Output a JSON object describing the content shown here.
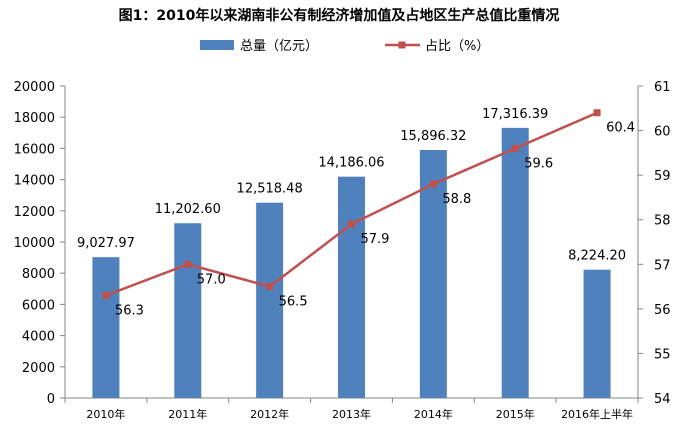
{
  "chart_data": {
    "type": "bar",
    "title": "图1：2010年以来湖南非公有制经济增加值及占地区生产总值比重情况",
    "categories": [
      "2010年",
      "2011年",
      "2012年",
      "2013年",
      "2014年",
      "2015年",
      "2016年上半年"
    ],
    "series": [
      {
        "name": "总量（亿元）",
        "type": "bar",
        "axis": "left",
        "color": "#4F81BD",
        "values": [
          9027.97,
          11202.6,
          12518.48,
          14186.06,
          15896.32,
          17316.39,
          8224.2
        ],
        "labels": [
          "9,027.97",
          "11,202.60",
          "12,518.48",
          "14,186.06",
          "15,896.32",
          "17,316.39",
          "8,224.20"
        ]
      },
      {
        "name": "占比（%）",
        "type": "line",
        "axis": "right",
        "color": "#C0504D",
        "values": [
          56.3,
          57.0,
          56.5,
          57.9,
          58.8,
          59.6,
          60.4
        ],
        "labels": [
          "56.3",
          "57.0",
          "56.5",
          "57.9",
          "58.8",
          "59.6",
          "60.4"
        ]
      }
    ],
    "y_left": {
      "min": 0,
      "max": 20000,
      "step": 2000
    },
    "y_right": {
      "min": 54,
      "max": 61,
      "step": 1
    },
    "legend_position": "top",
    "grid": false
  }
}
